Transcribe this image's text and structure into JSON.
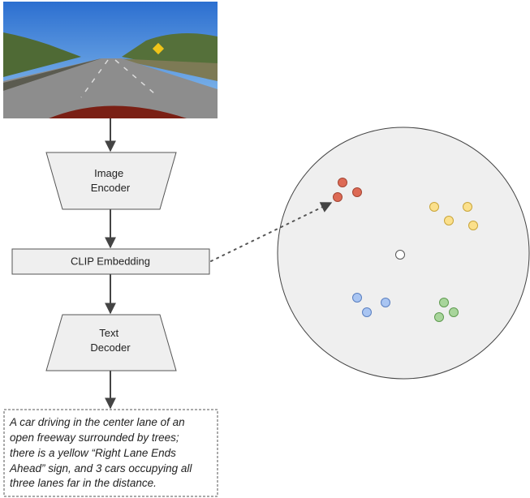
{
  "nodes": [
    {
      "label_lines": [
        "Image",
        "Encoder"
      ]
    },
    {
      "label_lines": [
        "CLIP Embedding"
      ]
    },
    {
      "label_lines": [
        "Text",
        "Decoder"
      ]
    }
  ],
  "caption": {
    "lines": [
      "A car driving in the center lane of an",
      "open freeway surrounded by trees;",
      "there is a yellow “Right Lane Ends",
      "Ahead” sign, and 3 cars occupying all",
      "three lanes far in the distance."
    ]
  }
}
